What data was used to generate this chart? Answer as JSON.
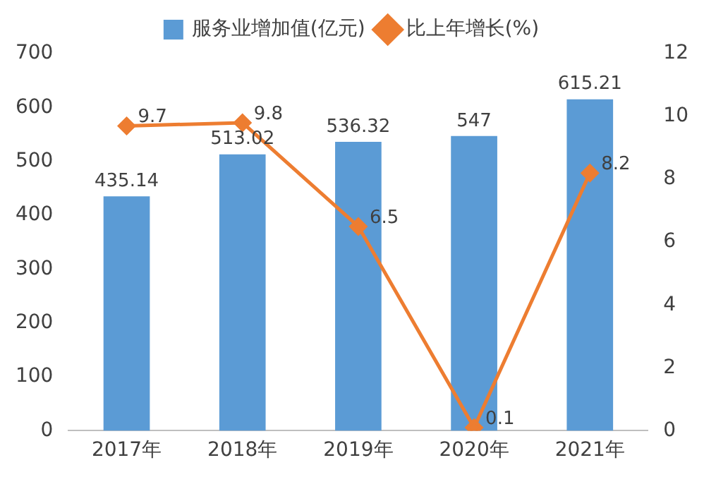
{
  "chart_data": {
    "type": "bar",
    "categories": [
      "2017年",
      "2018年",
      "2019年",
      "2020年",
      "2021年"
    ],
    "series": [
      {
        "name": "服务业增加值(亿元)",
        "color": "#5b9bd5",
        "values": [
          435.14,
          513.02,
          536.32,
          547,
          615.21
        ]
      },
      {
        "name": "比上年增长(%)",
        "type": "line",
        "axis": "y2",
        "color": "#ed7d31",
        "values": [
          9.7,
          9.8,
          6.5,
          0.1,
          8.2
        ]
      }
    ],
    "ylim": [
      0,
      700
    ],
    "yticks": [
      0,
      100,
      200,
      300,
      400,
      500,
      600,
      700
    ],
    "y2lim": [
      0,
      12
    ],
    "y2ticks": [
      0,
      2,
      4,
      6,
      8,
      10,
      12
    ],
    "data_labels": true,
    "legend": "top",
    "marker": "diamond",
    "grid": false
  }
}
